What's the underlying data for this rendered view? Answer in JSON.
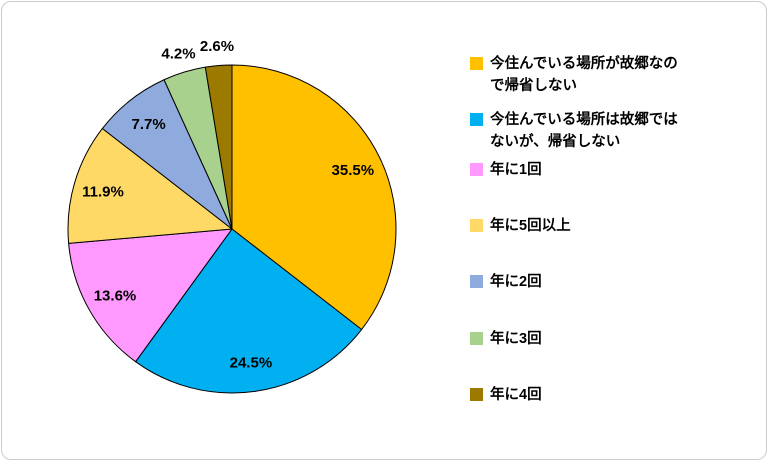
{
  "chart_data": {
    "type": "pie",
    "title": "",
    "direction": "clockwise",
    "start_angle_deg": 0,
    "legend_position": "right",
    "stroke_color": "#000000",
    "slices": [
      {
        "legend_label": "今住んでいる場所が故郷なの\nで帰省しない",
        "value": 35.5,
        "display": "35.5%",
        "color": "#FFC000"
      },
      {
        "legend_label": "今住んでいる場所は故郷では\nないが、帰省しない",
        "value": 24.5,
        "display": "24.5%",
        "color": "#00B0F0"
      },
      {
        "legend_label": "年に1回",
        "value": 13.6,
        "display": "13.6%",
        "color": "#FF99FF"
      },
      {
        "legend_label": "年に5回以上",
        "value": 11.9,
        "display": "11.9%",
        "color": "#FFD966"
      },
      {
        "legend_label": "年に2回",
        "value": 7.7,
        "display": "7.7%",
        "color": "#8FAADC"
      },
      {
        "legend_label": "年に3回",
        "value": 4.2,
        "display": "4.2%",
        "color": "#A9D18E"
      },
      {
        "legend_label": "年に4回",
        "value": 2.6,
        "display": "2.6%",
        "color": "#9C7A00"
      }
    ]
  }
}
